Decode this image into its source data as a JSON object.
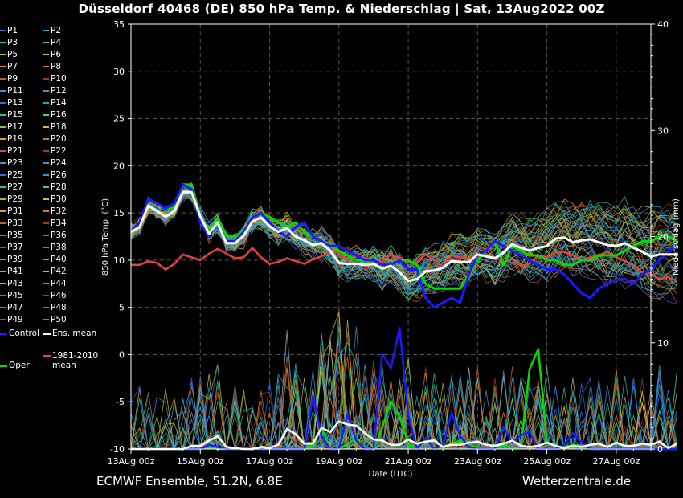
{
  "title": "Düsseldorf 40468 (DE)  850 hPa Temp. & Niederschlag | Sat, 13Aug2022 00Z",
  "footer": {
    "source": "ECMWF Ensemble, 51.2N, 6.8E",
    "site": "Wetterzentrale.de"
  },
  "colors": {
    "background": "#000000",
    "control": "#1a1aff",
    "oper": "#00dd00",
    "ens_mean": "#ffffff",
    "clim_mean": "#e84040",
    "grid": "#555555",
    "member_palette": [
      "#2b6ee8",
      "#1aa9d6",
      "#27c1b0",
      "#3ad17a",
      "#7ad13a",
      "#c9c23a",
      "#e0a030",
      "#d07a2a",
      "#c0603a",
      "#a04020",
      "#3a9ad8",
      "#5a8ac0"
    ]
  },
  "legend": {
    "members": [
      "P1",
      "P2",
      "P3",
      "P4",
      "P5",
      "P6",
      "P7",
      "P8",
      "P9",
      "P10",
      "P11",
      "P12",
      "P13",
      "P14",
      "P15",
      "P16",
      "P17",
      "P18",
      "P19",
      "P20",
      "P21",
      "P22",
      "P23",
      "P24",
      "P25",
      "P26",
      "P27",
      "P28",
      "P29",
      "P30",
      "P31",
      "P32",
      "P33",
      "P34",
      "P35",
      "P36",
      "P37",
      "P38",
      "P39",
      "P40",
      "P41",
      "P42",
      "P43",
      "P44",
      "P45",
      "P46",
      "P47",
      "P48",
      "P49",
      "P50"
    ],
    "control_label": "Control",
    "ens_mean_label": "Ens. mean",
    "clim_label": "1981-2010\nmean",
    "oper_label": "Oper"
  },
  "chart_data": {
    "type": "line",
    "xlabel": "Date (UTC)",
    "ylabel_left": "850 hPa Temp. (°C)",
    "ylabel_right": "Niederschlag (mm)",
    "ylim_left": [
      -10,
      35
    ],
    "ylim_right": [
      0,
      40
    ],
    "yticks_left": [
      -10,
      -5,
      0,
      5,
      10,
      15,
      20,
      25,
      30,
      35
    ],
    "yticks_right": [
      0,
      10,
      20,
      30,
      40
    ],
    "x_step_hours": 6,
    "x_range_hours": [
      0,
      360
    ],
    "x_tick_labels": [
      "13Aug 00z",
      "15Aug 00z",
      "17Aug 00z",
      "19Aug 00z",
      "21Aug 00z",
      "23Aug 00z",
      "25Aug 00z",
      "27Aug 00z"
    ],
    "x_tick_hours": [
      0,
      48,
      96,
      144,
      192,
      240,
      288,
      336
    ],
    "grid": true,
    "series": [
      {
        "name": "Control",
        "axis": "left",
        "values": [
          13.0,
          14.0,
          16.5,
          16.0,
          15.5,
          16.0,
          18.0,
          17.5,
          14.0,
          12.5,
          14.0,
          12.0,
          12.0,
          13.0,
          14.5,
          15.0,
          14.0,
          13.0,
          12.5,
          13.5,
          14.0,
          12.5,
          12.0,
          11.5,
          11.5,
          11.0,
          10.5,
          10.0,
          10.0,
          9.5,
          9.5,
          10.0,
          9.0,
          9.0,
          6.0,
          5.0,
          5.5,
          6.0,
          5.5,
          8.5,
          10.5,
          11.0,
          12.0,
          11.5,
          11.0,
          10.5,
          10.0,
          9.5,
          9.0,
          9.0,
          8.5,
          7.5,
          6.5,
          6.0,
          7.0,
          7.5,
          8.0,
          8.0,
          7.5,
          8.5,
          9.0,
          10.0,
          11.0,
          11.5
        ]
      },
      {
        "name": "Oper",
        "axis": "left",
        "values": [
          13.0,
          13.5,
          16.5,
          16.0,
          15.5,
          15.5,
          18.0,
          18.0,
          14.5,
          13.0,
          14.5,
          12.5,
          12.5,
          13.0,
          14.5,
          15.0,
          14.5,
          14.0,
          13.5,
          14.0,
          13.0,
          12.5,
          12.0,
          11.5,
          11.0,
          10.5,
          10.0,
          10.0,
          9.5,
          9.0,
          9.5,
          10.0,
          10.0,
          9.5,
          7.5,
          7.0,
          7.0,
          7.0,
          7.0,
          8.5,
          10.0,
          11.0,
          12.0,
          9.5,
          11.5,
          11.0,
          10.5,
          10.5,
          10.0,
          10.0,
          9.5,
          9.5,
          10.0,
          10.0,
          10.5,
          10.5,
          10.5,
          11.0,
          11.5,
          12.0,
          12.0,
          12.5,
          12.5,
          12.0
        ]
      },
      {
        "name": "Ens. mean",
        "axis": "left",
        "values": [
          13.0,
          13.5,
          15.8,
          15.2,
          14.6,
          15.2,
          17.2,
          17.2,
          14.6,
          12.8,
          14.0,
          11.8,
          11.8,
          12.6,
          14.1,
          14.5,
          13.6,
          13.0,
          13.4,
          12.5,
          12.1,
          11.6,
          11.8,
          11.0,
          9.7,
          9.6,
          9.6,
          9.5,
          9.6,
          9.1,
          9.4,
          8.7,
          7.8,
          8.0,
          8.8,
          8.9,
          9.2,
          9.9,
          9.8,
          9.8,
          10.6,
          10.4,
          10.2,
          10.8,
          11.7,
          11.3,
          11.0,
          11.3,
          11.5,
          12.3,
          12.4,
          11.9,
          12.1,
          12.2,
          11.9,
          11.6,
          11.5,
          11.8,
          11.3,
          10.9,
          10.4,
          10.6,
          10.6,
          10.6
        ]
      },
      {
        "name": "1981-2010 mean",
        "axis": "left",
        "values": [
          9.5,
          9.5,
          9.9,
          9.7,
          9.0,
          9.6,
          10.6,
          10.3,
          10.0,
          10.7,
          11.2,
          10.7,
          10.2,
          10.3,
          11.3,
          10.3,
          9.6,
          9.8,
          10.2,
          9.9,
          9.6,
          10.1,
          10.4,
          10.9,
          10.8,
          10.0,
          10.4,
          10.2,
          9.9,
          9.8,
          10.6,
          10.2,
          9.8,
          9.8,
          10.6,
          10.0,
          9.3,
          10.5,
          10.3,
          10.2,
          10.4,
          10.6,
          10.3,
          9.8,
          10.1,
          9.4,
          9.6,
          10.5,
          10.3,
          10.8,
          10.9,
          10.5,
          10.0,
          10.3,
          10.5,
          10.9,
          10.3,
          9.9,
          9.5,
          8.7,
          8.6,
          8.0,
          8.2,
          7.8
        ]
      },
      {
        "name": "Control precip",
        "axis": "right",
        "values": [
          0,
          0,
          0,
          0,
          0,
          0,
          0,
          0,
          0,
          0.4,
          0.2,
          0,
          0,
          0,
          0,
          0,
          0,
          0,
          0,
          0,
          0,
          5.0,
          1.2,
          0,
          0,
          3.2,
          0.8,
          0,
          0,
          9.0,
          7.6,
          11.4,
          3.2,
          0,
          1.0,
          0,
          0.4,
          3.4,
          1.2,
          0.2,
          0,
          0,
          0,
          2.1,
          0.6,
          1.3,
          1.6,
          0,
          0,
          0,
          0.4,
          1.5,
          0.6,
          0,
          0,
          0,
          0,
          0,
          0,
          0,
          0,
          0,
          0,
          0
        ]
      },
      {
        "name": "Oper precip",
        "axis": "right",
        "values": [
          0,
          0,
          0,
          0,
          0,
          0,
          0,
          0,
          0,
          0.2,
          0,
          0,
          0,
          0,
          0,
          0,
          0,
          0,
          0,
          0,
          0,
          0.3,
          2.0,
          0,
          0,
          0.5,
          1.0,
          0,
          0,
          2.0,
          4.5,
          3.0,
          0.5,
          0,
          1.0,
          0,
          0.2,
          0.5,
          0.8,
          0.3,
          0.2,
          0,
          0.4,
          0.3,
          0.1,
          0.2,
          7.5,
          9.4,
          0.8,
          0,
          0.2,
          0.4,
          0.3,
          0,
          0,
          0,
          0,
          0,
          0,
          0,
          0,
          0,
          0,
          0
        ]
      },
      {
        "name": "Ens. mean precip",
        "axis": "right",
        "values": [
          0,
          0,
          0,
          0,
          0,
          0,
          0,
          0.3,
          0.3,
          0.8,
          1.2,
          0.2,
          0.1,
          0,
          0,
          0.2,
          0.1,
          0.4,
          1.9,
          1.4,
          0.5,
          0.5,
          2.0,
          1.6,
          2.6,
          2.3,
          2.2,
          1.5,
          0.9,
          0.8,
          0.4,
          0.4,
          0.9,
          0.5,
          0.7,
          0.8,
          0.2,
          0.4,
          0.4,
          0.6,
          0.7,
          0.4,
          0.3,
          0.5,
          0.8,
          0.3,
          0.2,
          0.3,
          0.6,
          0.3,
          0.1,
          0.3,
          0.2,
          0.4,
          0.5,
          0.2,
          0.6,
          0.3,
          0.3,
          0.5,
          0.4,
          0.7,
          0.1,
          0.5
        ]
      }
    ]
  }
}
